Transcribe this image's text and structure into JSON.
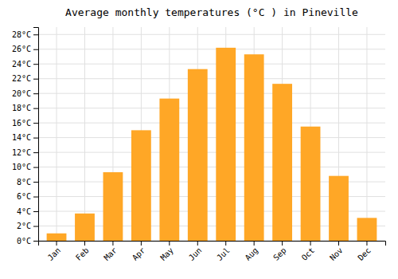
{
  "chart_data": {
    "type": "bar",
    "title": "Average monthly temperatures (°C ) in Pineville",
    "categories": [
      "Jan",
      "Feb",
      "Mar",
      "Apr",
      "May",
      "Jun",
      "Jul",
      "Aug",
      "Sep",
      "Oct",
      "Nov",
      "Dec"
    ],
    "values": [
      1.0,
      3.7,
      9.3,
      15.0,
      19.3,
      23.3,
      26.2,
      25.3,
      21.3,
      15.5,
      8.8,
      3.1
    ],
    "color": "#FFA726",
    "ylim": [
      0,
      29
    ],
    "yticks": [
      {
        "value": 0,
        "label": "0°C"
      },
      {
        "value": 2,
        "label": "2°C"
      },
      {
        "value": 4,
        "label": "4°C"
      },
      {
        "value": 6,
        "label": "6°C"
      },
      {
        "value": 8,
        "label": "8°C"
      },
      {
        "value": 10,
        "label": "10°C"
      },
      {
        "value": 12,
        "label": "12°C"
      },
      {
        "value": 14,
        "label": "14°C"
      },
      {
        "value": 16,
        "label": "16°C"
      },
      {
        "value": 18,
        "label": "18°C"
      },
      {
        "value": 20,
        "label": "20°C"
      },
      {
        "value": 22,
        "label": "22°C"
      },
      {
        "value": 24,
        "label": "24°C"
      },
      {
        "value": 26,
        "label": "26°C"
      },
      {
        "value": 28,
        "label": "28°C"
      }
    ],
    "grid": true
  }
}
